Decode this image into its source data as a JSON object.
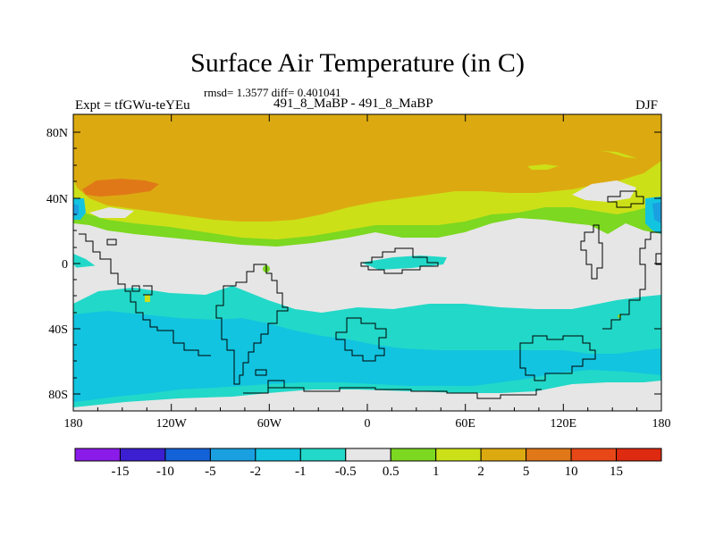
{
  "title": "Surface Air Temperature (in C)",
  "stats": "rmsd= 1.3577 diff= 0.401041",
  "experiment_label": "Expt = tfGWu-teYEu",
  "comparison_label": "491_8_MaBP - 491_8_MaBP",
  "season": "DJF",
  "chart_data": {
    "type": "heatmap",
    "x_ticks": [
      "180",
      "120W",
      "60W",
      "0",
      "60E",
      "120E",
      "180"
    ],
    "y_ticks": [
      "80N",
      "40N",
      "0",
      "40S",
      "80S"
    ],
    "colorbar": {
      "labels": [
        "-15",
        "-10",
        "-5",
        "-2",
        "-1",
        "-0.5",
        "0.5",
        "1",
        "2",
        "5",
        "10",
        "15"
      ],
      "colors": [
        "#8a1be8",
        "#3c1fd0",
        "#1462d8",
        "#1aa0e0",
        "#12c4e0",
        "#22d8c8",
        "#e6e6e6",
        "#7cd820",
        "#cce018",
        "#dcaa10",
        "#e07818",
        "#e84818",
        "#dd2a10"
      ]
    }
  }
}
